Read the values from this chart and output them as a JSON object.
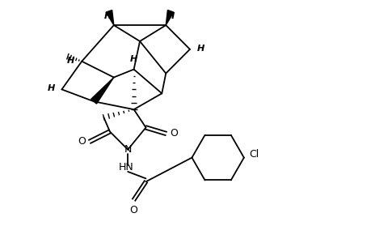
{
  "background": "#ffffff",
  "line_width": 1.3,
  "figsize": [
    4.6,
    3.0
  ],
  "dpi": 100,
  "xlim": [
    0,
    9.2
  ],
  "ylim": [
    0,
    6.0
  ]
}
